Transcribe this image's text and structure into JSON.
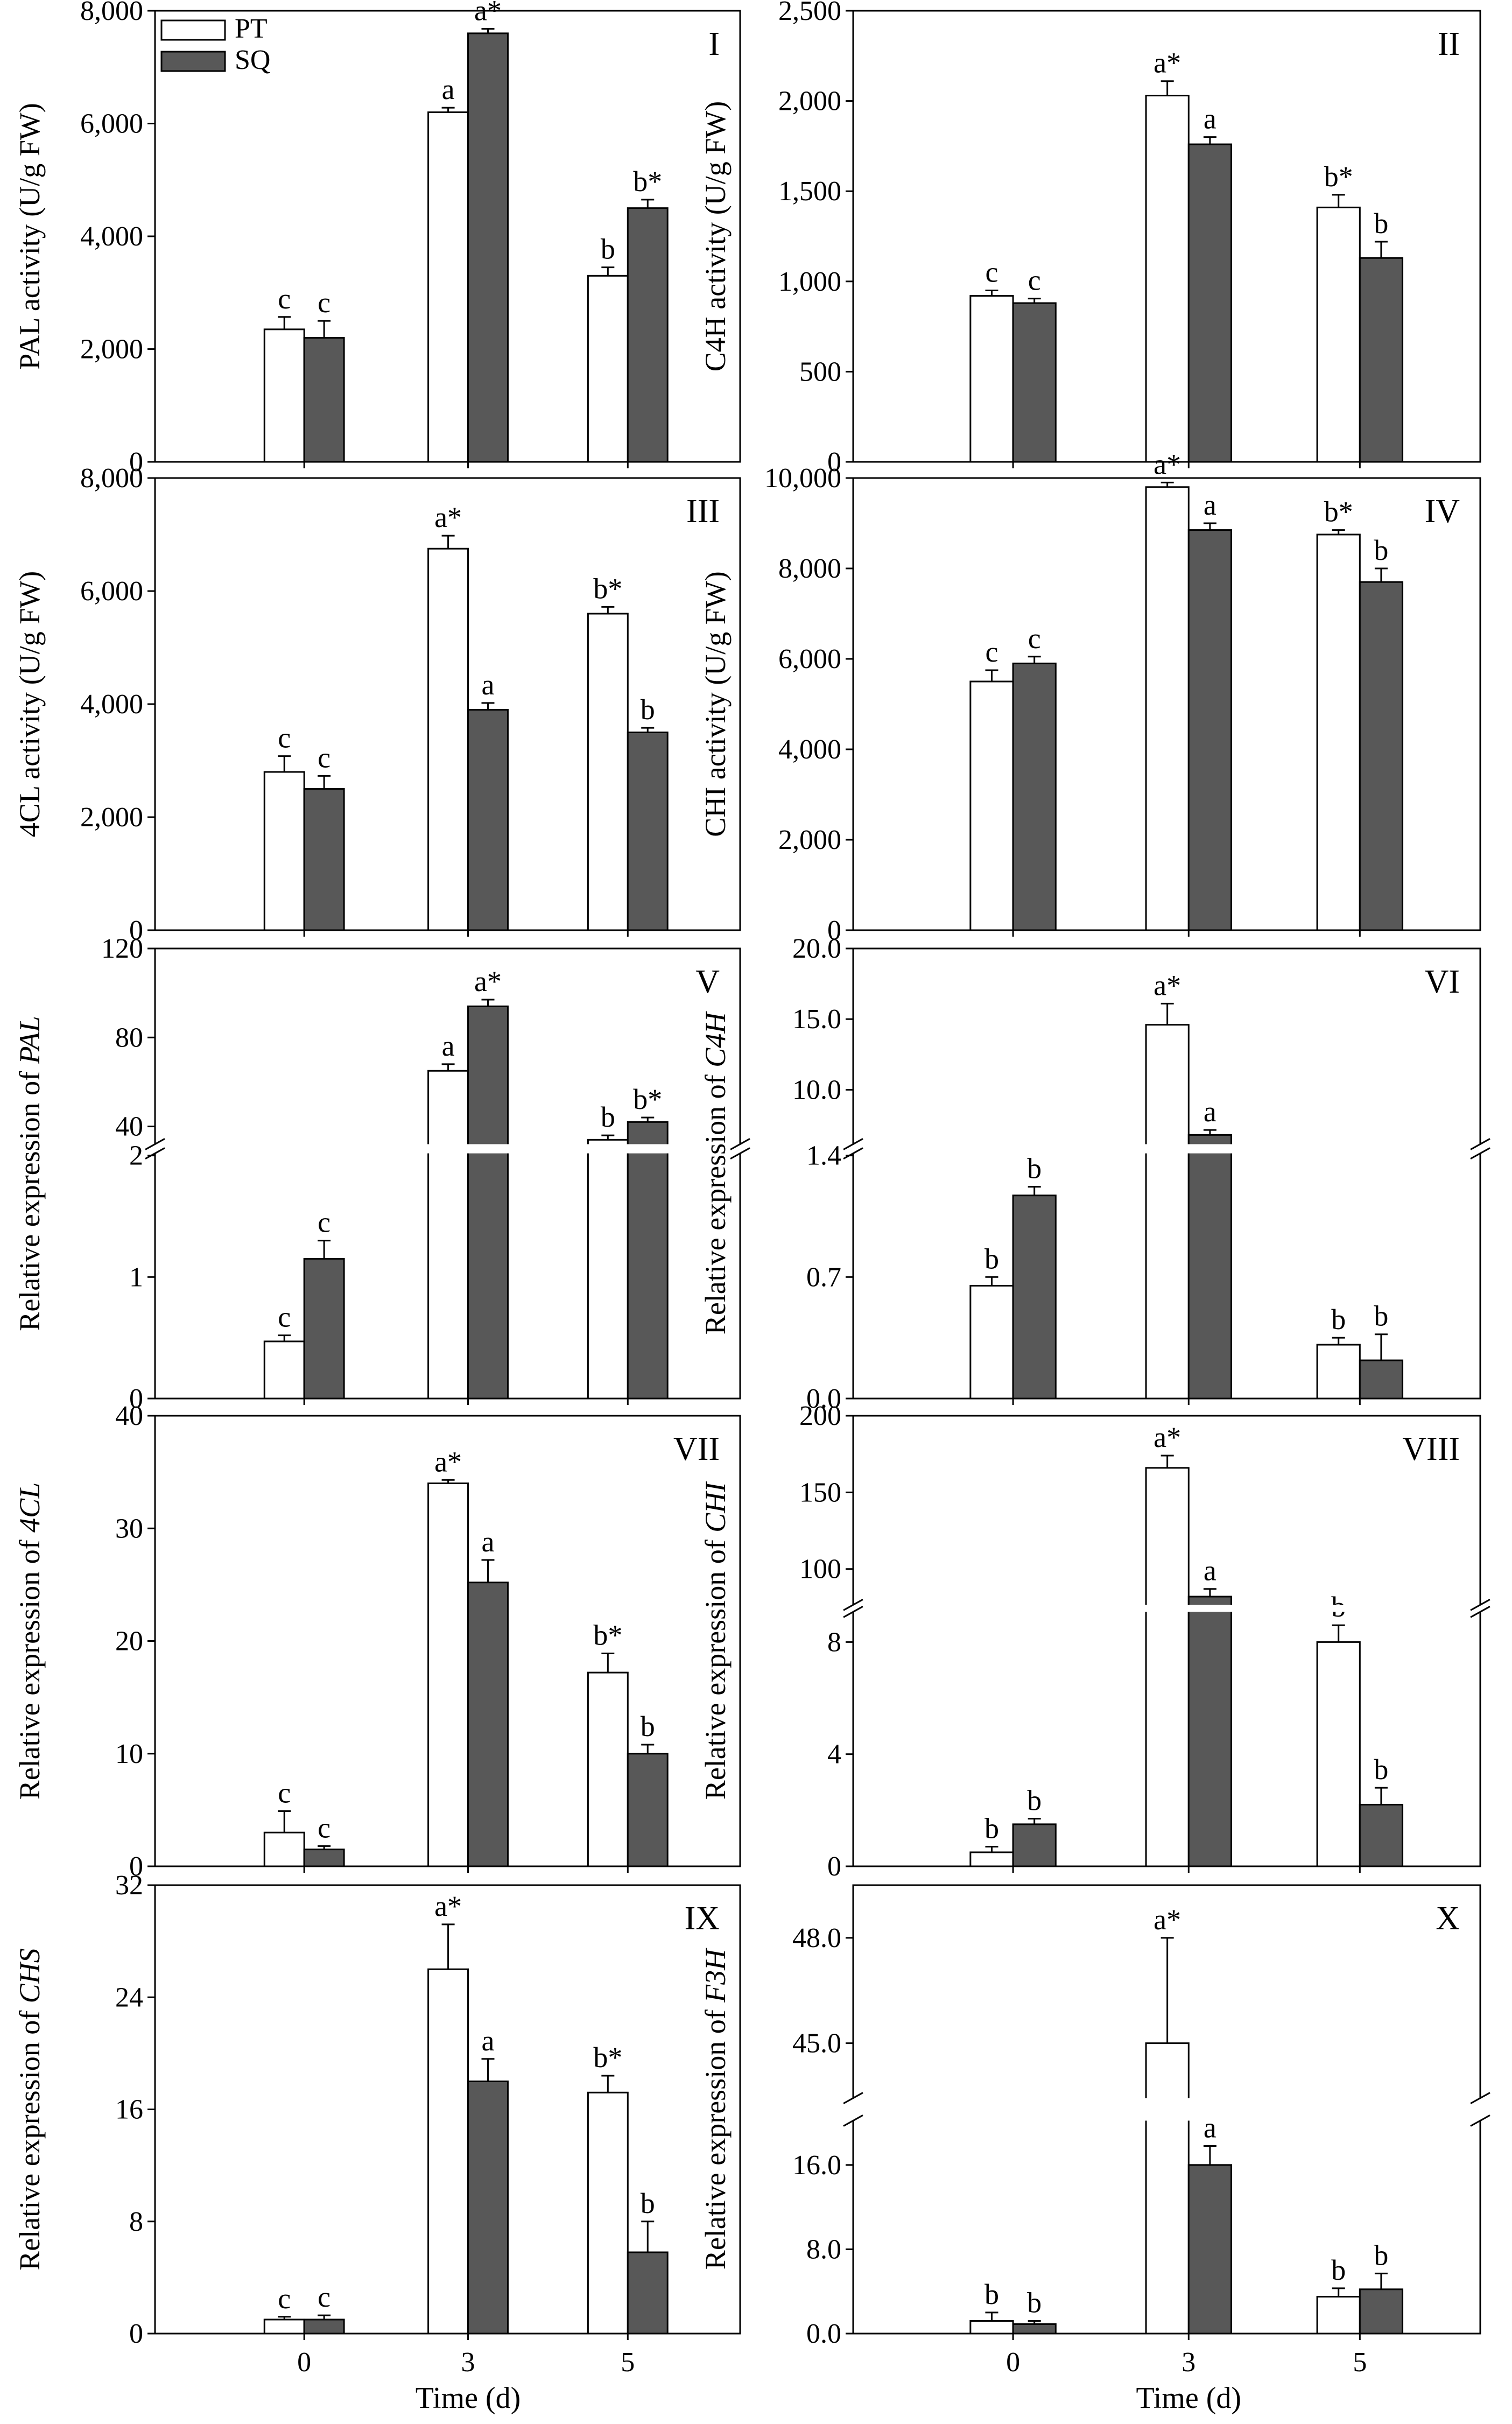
{
  "figure": {
    "legend": [
      {
        "name": "PT",
        "color": "#ffffff"
      },
      {
        "name": "SQ",
        "color": "#585858"
      }
    ],
    "x_label": "Time (d)",
    "x_ticks": [
      "0",
      "3",
      "5"
    ]
  },
  "chart_data": [
    {
      "type": "bar",
      "panel": "I",
      "ylabel": "PAL activity (U/g FW)",
      "categories": [
        "0",
        "3",
        "5"
      ],
      "yticks": [
        0,
        2000,
        4000,
        6000,
        8000
      ],
      "ytick_labels": [
        "0",
        "2,000",
        "4,000",
        "6,000",
        "8,000"
      ],
      "ylim": [
        0,
        8000
      ],
      "series": [
        {
          "name": "PT",
          "values": [
            2350,
            6200,
            3300
          ],
          "errors": [
            220,
            80,
            150
          ],
          "letters": [
            "c",
            "a",
            "b"
          ]
        },
        {
          "name": "SQ",
          "values": [
            2200,
            7600,
            4500
          ],
          "errors": [
            300,
            80,
            150
          ],
          "letters": [
            "c",
            "a*",
            "b*"
          ]
        }
      ]
    },
    {
      "type": "bar",
      "panel": "II",
      "ylabel": "C4H activity (U/g FW)",
      "categories": [
        "0",
        "3",
        "5"
      ],
      "yticks": [
        0,
        500,
        1000,
        1500,
        2000,
        2500
      ],
      "ytick_labels": [
        "0",
        "500",
        "1,000",
        "1,500",
        "2,000",
        "2,500"
      ],
      "ylim": [
        0,
        2500
      ],
      "series": [
        {
          "name": "PT",
          "values": [
            920,
            2030,
            1410
          ],
          "errors": [
            30,
            80,
            70
          ],
          "letters": [
            "c",
            "a*",
            "b*"
          ]
        },
        {
          "name": "SQ",
          "values": [
            880,
            1760,
            1130
          ],
          "errors": [
            25,
            40,
            90
          ],
          "letters": [
            "c",
            "a",
            "b"
          ]
        }
      ]
    },
    {
      "type": "bar",
      "panel": "III",
      "ylabel": "4CL activity (U/g FW)",
      "categories": [
        "0",
        "3",
        "5"
      ],
      "yticks": [
        0,
        2000,
        4000,
        6000,
        8000
      ],
      "ytick_labels": [
        "0",
        "2,000",
        "4,000",
        "6,000",
        "8,000"
      ],
      "ylim": [
        0,
        8000
      ],
      "series": [
        {
          "name": "PT",
          "values": [
            2800,
            6750,
            5600
          ],
          "errors": [
            280,
            230,
            120
          ],
          "letters": [
            "c",
            "a*",
            "b*"
          ]
        },
        {
          "name": "SQ",
          "values": [
            2500,
            3900,
            3500
          ],
          "errors": [
            230,
            120,
            80
          ],
          "letters": [
            "c",
            "a",
            "b"
          ]
        }
      ]
    },
    {
      "type": "bar",
      "panel": "IV",
      "ylabel": "CHI activity (U/g FW)",
      "categories": [
        "0",
        "3",
        "5"
      ],
      "yticks": [
        0,
        2000,
        4000,
        6000,
        8000,
        10000
      ],
      "ytick_labels": [
        "0",
        "2,000",
        "4,000",
        "6,000",
        "8,000",
        "10,000"
      ],
      "ylim": [
        0,
        10000
      ],
      "series": [
        {
          "name": "PT",
          "values": [
            5500,
            9800,
            8750
          ],
          "errors": [
            250,
            100,
            100
          ],
          "letters": [
            "c",
            "a*",
            "b*"
          ]
        },
        {
          "name": "SQ",
          "values": [
            5900,
            8850,
            7700
          ],
          "errors": [
            150,
            150,
            300
          ],
          "letters": [
            "c",
            "a",
            "b"
          ]
        }
      ]
    },
    {
      "type": "bar",
      "panel": "V",
      "ylabel": "Relative expression of PAL",
      "ylabel_prefix": "Relative expression of ",
      "ylabel_gene": "PAL",
      "categories": [
        "0",
        "3",
        "5"
      ],
      "broken_axis": {
        "lower": [
          0,
          2
        ],
        "upper": [
          33,
          120
        ]
      },
      "yticks_lower": [
        0,
        1,
        2
      ],
      "yticks_upper": [
        40,
        80,
        120
      ],
      "series": [
        {
          "name": "PT",
          "values": [
            0.47,
            65,
            34
          ],
          "errors": [
            0.05,
            3,
            2
          ],
          "letters": [
            "c",
            "a",
            "b"
          ]
        },
        {
          "name": "SQ",
          "values": [
            1.15,
            94,
            42
          ],
          "errors": [
            0.15,
            3,
            2
          ],
          "letters": [
            "c",
            "a*",
            "b*"
          ]
        }
      ]
    },
    {
      "type": "bar",
      "panel": "VI",
      "ylabel": "Relative expression of C4H",
      "ylabel_prefix": "Relative expression of ",
      "ylabel_gene": "C4H",
      "categories": [
        "0",
        "3",
        "5"
      ],
      "broken_axis": {
        "lower": [
          0,
          1.4
        ],
        "upper": [
          6.3,
          20
        ]
      },
      "yticks_lower": [
        0.0,
        0.7,
        1.4
      ],
      "yticks_upper": [
        10.0,
        15.0,
        20.0
      ],
      "ytick_labels_lower": [
        "0.0",
        "0.7",
        "1.4"
      ],
      "ytick_labels_upper": [
        "10.0",
        "15.0",
        "20.0"
      ],
      "series": [
        {
          "name": "PT",
          "values": [
            0.65,
            14.6,
            0.31
          ],
          "errors": [
            0.05,
            1.5,
            0.04
          ],
          "letters": [
            "b",
            "a*",
            "b"
          ]
        },
        {
          "name": "SQ",
          "values": [
            1.17,
            6.8,
            0.22
          ],
          "errors": [
            0.05,
            0.35,
            0.15
          ],
          "letters": [
            "b",
            "a",
            "b"
          ]
        }
      ]
    },
    {
      "type": "bar",
      "panel": "VII",
      "ylabel": "Relative expression of 4CL",
      "ylabel_prefix": "Relative expression of ",
      "ylabel_gene": "4CL",
      "categories": [
        "0",
        "3",
        "5"
      ],
      "yticks": [
        0,
        10,
        20,
        30,
        40
      ],
      "ytick_labels": [
        "0",
        "10",
        "20",
        "30",
        "40"
      ],
      "ylim": [
        0,
        40
      ],
      "series": [
        {
          "name": "PT",
          "values": [
            3.0,
            34.0,
            17.2
          ],
          "errors": [
            1.9,
            0.3,
            1.7
          ],
          "letters": [
            "c",
            "a*",
            "b*"
          ]
        },
        {
          "name": "SQ",
          "values": [
            1.5,
            25.2,
            10.0
          ],
          "errors": [
            0.3,
            2.0,
            0.8
          ],
          "letters": [
            "c",
            "a",
            "b"
          ]
        }
      ]
    },
    {
      "type": "bar",
      "panel": "VIII",
      "ylabel": "Relative expression of CHI",
      "ylabel_prefix": "Relative expression of ",
      "ylabel_gene": "CHI",
      "categories": [
        "0",
        "3",
        "5"
      ],
      "broken_axis": {
        "lower": [
          0,
          9
        ],
        "upper": [
          78,
          200
        ]
      },
      "yticks_lower": [
        0,
        4,
        8
      ],
      "yticks_upper": [
        100,
        150,
        200
      ],
      "series": [
        {
          "name": "PT",
          "values": [
            0.5,
            166,
            8.0
          ],
          "errors": [
            0.2,
            8,
            0.6
          ],
          "letters": [
            "b",
            "a*",
            "b"
          ]
        },
        {
          "name": "SQ",
          "values": [
            1.5,
            82,
            2.2
          ],
          "errors": [
            0.2,
            5,
            0.6
          ],
          "letters": [
            "b",
            "a",
            "b"
          ]
        }
      ]
    },
    {
      "type": "bar",
      "panel": "IX",
      "ylabel": "Relative expression of CHS",
      "ylabel_prefix": "Relative expression of ",
      "ylabel_gene": "CHS",
      "categories": [
        "0",
        "3",
        "5"
      ],
      "yticks": [
        0,
        8,
        16,
        24,
        32
      ],
      "ytick_labels": [
        "0",
        "8",
        "16",
        "24",
        "32"
      ],
      "ylim": [
        0,
        32
      ],
      "series": [
        {
          "name": "PT",
          "values": [
            1.0,
            26.0,
            17.2
          ],
          "errors": [
            0.2,
            3.2,
            1.2
          ],
          "letters": [
            "c",
            "a*",
            "b*"
          ]
        },
        {
          "name": "SQ",
          "values": [
            1.0,
            18.0,
            5.8
          ],
          "errors": [
            0.3,
            1.6,
            2.2
          ],
          "letters": [
            "c",
            "a",
            "b"
          ]
        }
      ]
    },
    {
      "type": "bar",
      "panel": "X",
      "ylabel": "Relative expression of F3H",
      "ylabel_prefix": "Relative expression of ",
      "ylabel_gene": "F3H",
      "categories": [
        "0",
        "3",
        "5"
      ],
      "broken_axis": {
        "lower": [
          0,
          20
        ],
        "upper": [
          43.5,
          49.5
        ]
      },
      "yticks_lower": [
        0,
        8,
        16
      ],
      "yticks_upper": [
        45,
        48
      ],
      "ytick_labels_lower": [
        "0.0",
        "8.0",
        "16.0"
      ],
      "ytick_labels_upper": [
        "45.0",
        "48.0"
      ],
      "series": [
        {
          "name": "PT",
          "values": [
            1.2,
            45.0,
            3.5
          ],
          "errors": [
            0.8,
            3.0,
            0.8
          ],
          "letters": [
            "b",
            "a*",
            "b"
          ]
        },
        {
          "name": "SQ",
          "values": [
            0.9,
            16.0,
            4.2
          ],
          "errors": [
            0.3,
            1.8,
            1.5
          ],
          "letters": [
            "b",
            "a",
            "b"
          ]
        }
      ]
    }
  ]
}
